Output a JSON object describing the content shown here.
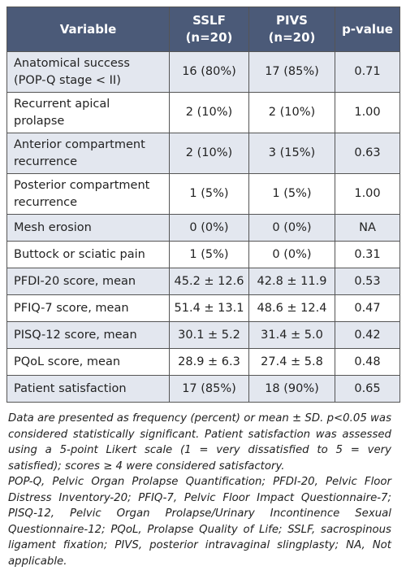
{
  "table": {
    "header": [
      "Variable",
      "SSLF\n(n=20)",
      "PIVS\n(n=20)",
      "p-value"
    ],
    "rows": [
      [
        "Anatomical success\n(POP-Q stage < II)",
        "16 (80%)",
        "17 (85%)",
        "0.71"
      ],
      [
        "Recurrent apical\nprolapse",
        "2 (10%)",
        "2 (10%)",
        "1.00"
      ],
      [
        "Anterior compartment\nrecurrence",
        "2 (10%)",
        "3 (15%)",
        "0.63"
      ],
      [
        "Posterior compartment\nrecurrence",
        "1 (5%)",
        "1 (5%)",
        "1.00"
      ],
      [
        "Mesh erosion",
        "0 (0%)",
        "0 (0%)",
        "NA"
      ],
      [
        "Buttock or sciatic pain",
        "1 (5%)",
        "0 (0%)",
        "0.31"
      ],
      [
        "PFDI-20 score, mean",
        "45.2 ± 12.6",
        "42.8 ± 11.9",
        "0.53"
      ],
      [
        "PFIQ-7 score, mean",
        "51.4 ± 13.1",
        "48.6 ± 12.4",
        "0.47"
      ],
      [
        "PISQ-12 score, mean",
        "30.1 ± 5.2",
        "31.4 ± 5.0",
        "0.42"
      ],
      [
        "PQoL score, mean",
        "28.9 ± 6.3",
        "27.4 ± 5.8",
        "0.48"
      ],
      [
        "Patient satisfaction",
        "17 (85%)",
        "18 (90%)",
        "0.65"
      ]
    ]
  },
  "notes": [
    "Data are presented as frequency (percent) or mean ± SD. p<0.05 was considered statistically significant. Patient satisfaction was assessed using a 5-point Likert scale (1 = very dissatisfied to 5 = very satisfied); scores ≥ 4 were considered satisfactory.",
    "POP-Q, Pelvic Organ Prolapse Quantification; PFDI-20, Pelvic Floor Distress Inventory-20; PFIQ-7, Pelvic Floor Impact Questionnaire-7; PISQ-12, Pelvic Organ Prolapse/Urinary Incontinence Sexual Questionnaire-12; PQoL, Prolapse Quality of Life; SSLF, sacrospinous ligament fixation; PIVS, posterior intravaginal slingplasty; NA, Not applicable."
  ]
}
